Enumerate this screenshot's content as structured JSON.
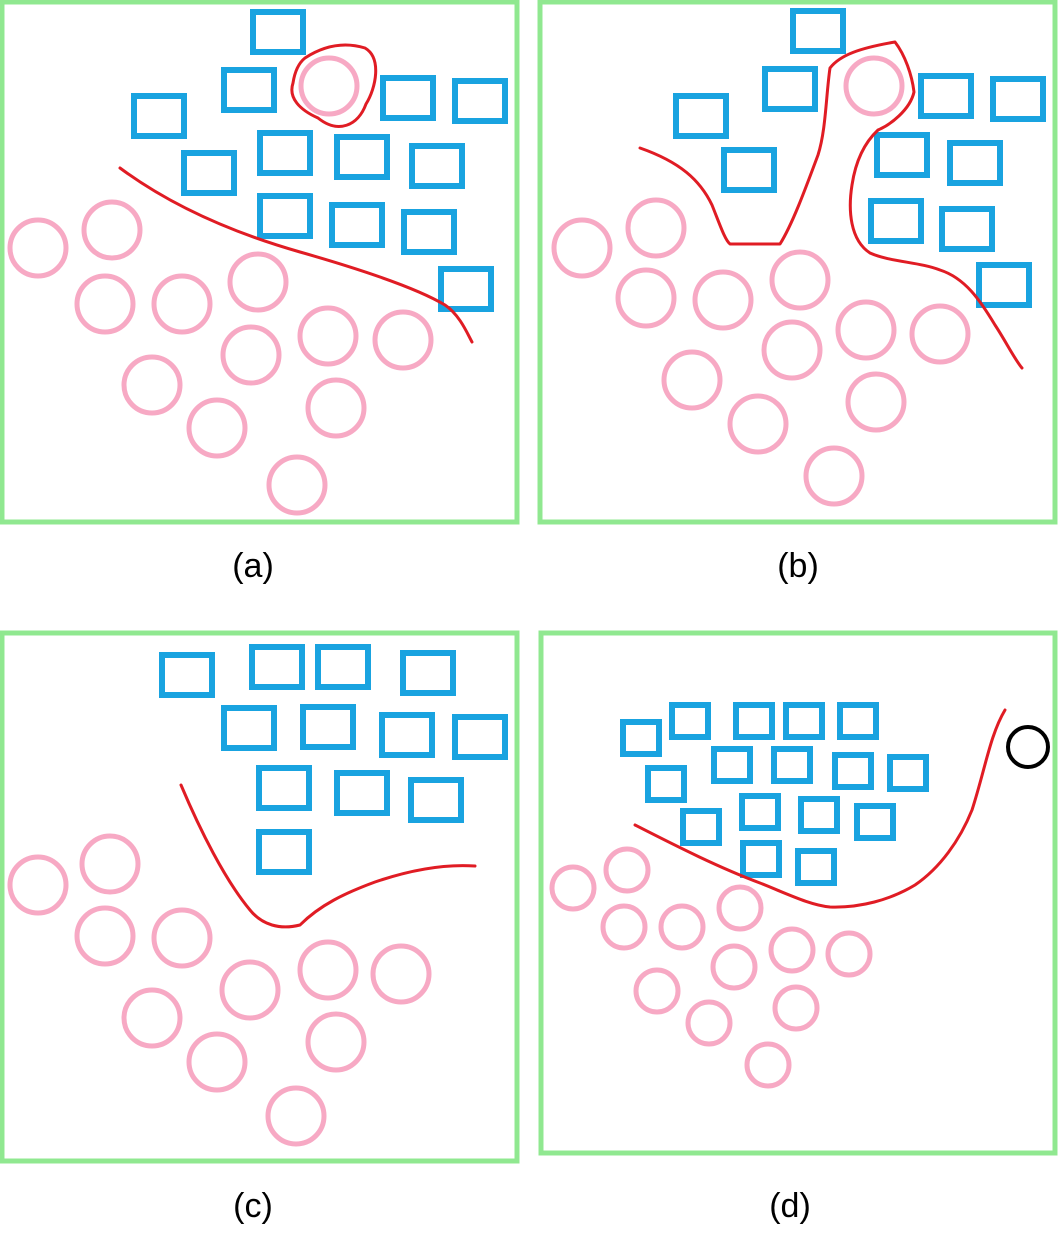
{
  "colors": {
    "frame": "#90e890",
    "square": "#19a3e0",
    "circle": "#f7a9c4",
    "boundary": "#e01c24",
    "highlight": "#000000"
  },
  "panels": [
    {
      "caption": "(a)"
    },
    {
      "caption": "(b)"
    },
    {
      "caption": "(c)"
    },
    {
      "caption": "(d)"
    }
  ]
}
